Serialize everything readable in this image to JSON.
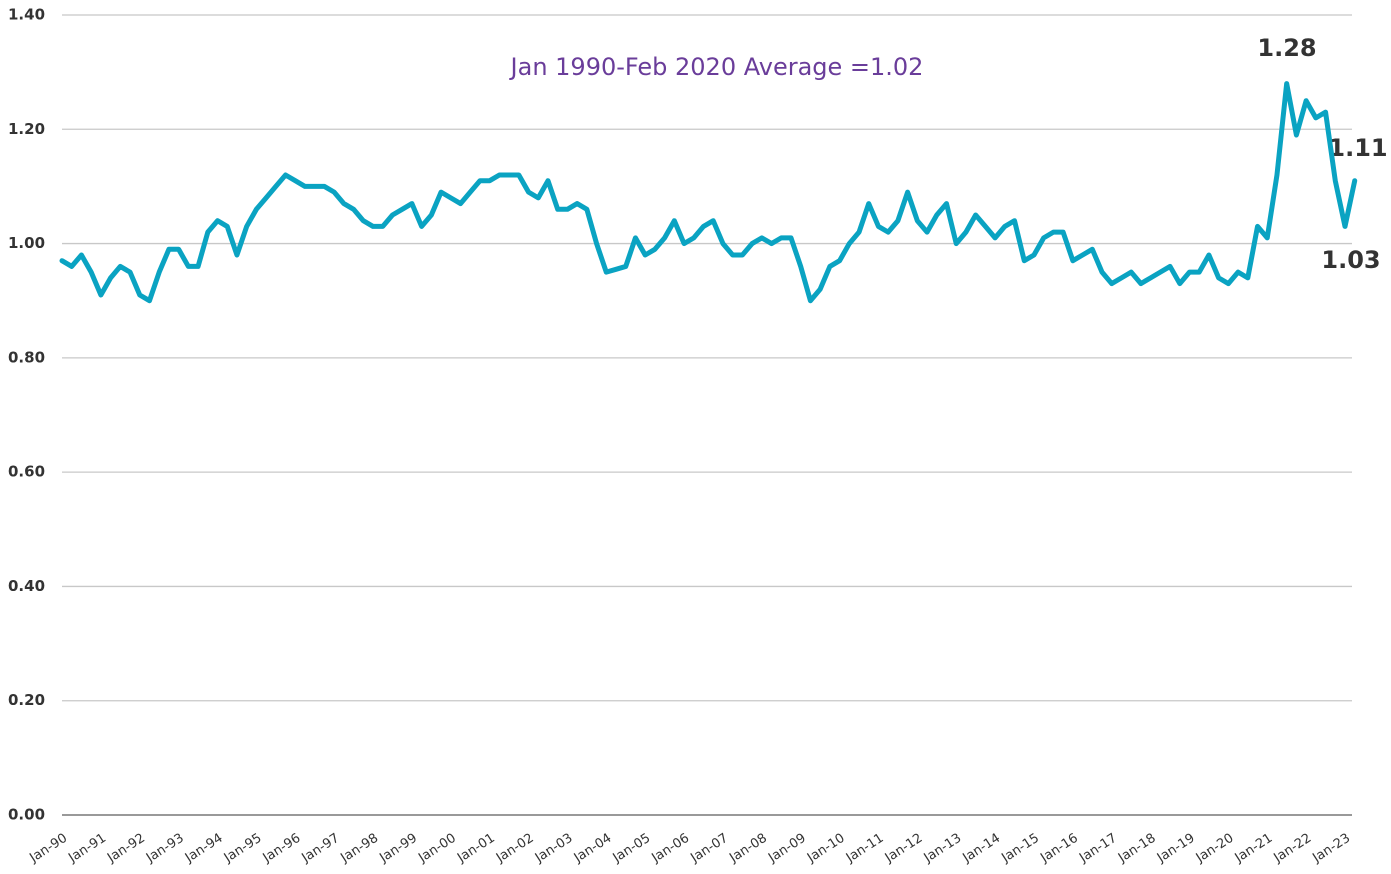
{
  "chart_data": {
    "type": "line",
    "subtitle": "Jan 1990-Feb 2020 Average =1.02",
    "annotations": [
      "1.28",
      "1.11",
      "1.03"
    ],
    "categories": [
      "Jan-90",
      null,
      null,
      null,
      "Jan-91",
      null,
      null,
      null,
      "Jan-92",
      null,
      null,
      null,
      "Jan-93",
      null,
      null,
      null,
      "Jan-94",
      null,
      null,
      null,
      "Jan-95",
      null,
      null,
      null,
      "Jan-96",
      null,
      null,
      null,
      "Jan-97",
      null,
      null,
      null,
      "Jan-98",
      null,
      null,
      null,
      "Jan-99",
      null,
      null,
      null,
      "Jan-00",
      null,
      null,
      null,
      "Jan-01",
      null,
      null,
      null,
      "Jan-02",
      null,
      null,
      null,
      "Jan-03",
      null,
      null,
      null,
      "Jan-04",
      null,
      null,
      null,
      "Jan-05",
      null,
      null,
      null,
      "Jan-06",
      null,
      null,
      null,
      "Jan-07",
      null,
      null,
      null,
      "Jan-08",
      null,
      null,
      null,
      "Jan-09",
      null,
      null,
      null,
      "Jan-10",
      null,
      null,
      null,
      "Jan-11",
      null,
      null,
      null,
      "Jan-12",
      null,
      null,
      null,
      "Jan-13",
      null,
      null,
      null,
      "Jan-14",
      null,
      null,
      null,
      "Jan-15",
      null,
      null,
      null,
      "Jan-16",
      null,
      null,
      null,
      "Jan-17",
      null,
      null,
      null,
      "Jan-18",
      null,
      null,
      null,
      "Jan-19",
      null,
      null,
      null,
      "Jan-20",
      null,
      null,
      null,
      "Jan-21",
      null,
      null,
      null,
      "Jan-22",
      null,
      null,
      null,
      "Jan-23",
      null
    ],
    "series": [
      {
        "color": "#0aa3c2",
        "values": [
          0.97,
          0.96,
          0.98,
          0.95,
          0.91,
          0.94,
          0.96,
          0.95,
          0.91,
          0.9,
          0.95,
          0.99,
          0.99,
          0.96,
          0.96,
          1.02,
          1.04,
          1.03,
          0.98,
          1.03,
          1.06,
          1.08,
          1.1,
          1.12,
          1.11,
          1.1,
          1.1,
          1.1,
          1.09,
          1.07,
          1.06,
          1.04,
          1.03,
          1.03,
          1.05,
          1.06,
          1.07,
          1.03,
          1.05,
          1.09,
          1.08,
          1.07,
          1.09,
          1.11,
          1.11,
          1.12,
          1.12,
          1.12,
          1.09,
          1.08,
          1.11,
          1.06,
          1.06,
          1.07,
          1.06,
          1.0,
          0.95,
          0.955,
          0.96,
          1.01,
          0.98,
          0.99,
          1.01,
          1.04,
          1.0,
          1.01,
          1.03,
          1.04,
          1.0,
          0.98,
          0.98,
          1.0,
          1.01,
          1.0,
          1.01,
          1.01,
          0.96,
          0.9,
          0.92,
          0.96,
          0.97,
          1.0,
          1.02,
          1.07,
          1.03,
          1.02,
          1.04,
          1.09,
          1.04,
          1.02,
          1.05,
          1.07,
          1.0,
          1.02,
          1.05,
          1.03,
          1.01,
          1.03,
          1.04,
          0.97,
          0.98,
          1.01,
          1.02,
          1.02,
          0.97,
          0.98,
          0.99,
          0.95,
          0.93,
          0.94,
          0.95,
          0.93,
          0.94,
          0.95,
          0.96,
          0.93,
          0.95,
          0.95,
          0.98,
          0.94,
          0.93,
          0.95,
          0.94,
          1.03,
          1.01,
          1.12,
          1.28,
          1.19,
          1.25,
          1.22,
          1.23,
          1.11,
          1.03,
          1.11
        ]
      }
    ],
    "ylim": [
      0,
      1.4
    ],
    "yticks": [
      {
        "value": 0,
        "label": "0.00"
      },
      {
        "value": 0.2,
        "label": "0.20"
      },
      {
        "value": 0.4,
        "label": "0.40"
      },
      {
        "value": 0.6,
        "label": "0.60"
      },
      {
        "value": 0.8,
        "label": "0.80"
      },
      {
        "value": 1,
        "label": "1.00"
      },
      {
        "value": 1.2,
        "label": "1.20"
      },
      {
        "value": 1.4,
        "label": "1.40"
      }
    ],
    "grid": true
  }
}
